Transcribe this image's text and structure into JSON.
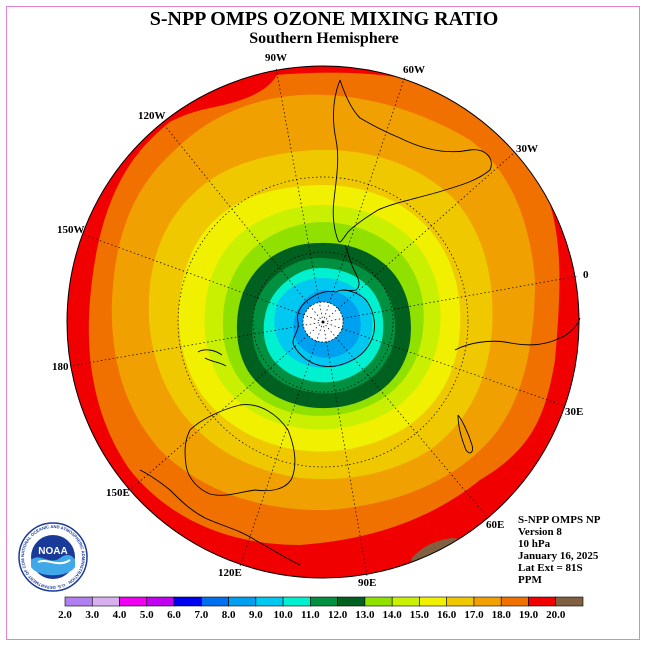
{
  "title": "S-NPP OMPS OZONE MIXING RATIO",
  "subtitle": "Southern Hemisphere",
  "longitude_labels": [
    "90W",
    "60W",
    "30W",
    "0",
    "30E",
    "60E",
    "90E",
    "120E",
    "150E",
    "180",
    "150W",
    "120W"
  ],
  "info": {
    "line1": "S-NPP OMPS NP",
    "line2": "Version 8",
    "line3": "10 hPa",
    "line4": "January 16, 2025",
    "line5": "Lat Ext = 81S",
    "line6": "PPM"
  },
  "logo": {
    "text": "NOAA",
    "ring_text": "NATIONAL OCEANIC AND ATMOSPHERIC ADMINISTRATION · U.S. DEPARTMENT OF COMMERCE"
  },
  "colorbar": {
    "labels": [
      "2.0",
      "3.0",
      "4.0",
      "5.0",
      "6.0",
      "7.0",
      "8.0",
      "9.0",
      "10.0",
      "11.0",
      "12.0",
      "13.0",
      "14.0",
      "15.0",
      "16.0",
      "17.0",
      "18.0",
      "19.0",
      "20.0"
    ],
    "colors": [
      "#b080f0",
      "#d8b0f0",
      "#f000f0",
      "#c000f0",
      "#0000f0",
      "#0070f0",
      "#00a0f0",
      "#00c8f0",
      "#00f0d0",
      "#009040",
      "#006020",
      "#90e000",
      "#c8f000",
      "#f0f000",
      "#f0c800",
      "#f0a000",
      "#f07000",
      "#f00000",
      "#806040"
    ]
  },
  "map_colors": {
    "red": "#f00000",
    "orange_red": "#f07000",
    "orange": "#f0a000",
    "gold": "#f0c800",
    "yellow": "#f0f000",
    "yellow_green": "#c8f000",
    "light_green": "#90e000",
    "dark_green": "#006020",
    "green": "#009040",
    "cyan": "#00f0d0",
    "light_blue": "#00c8f0",
    "mid_blue": "#00a0f0",
    "brown": "#806040"
  }
}
